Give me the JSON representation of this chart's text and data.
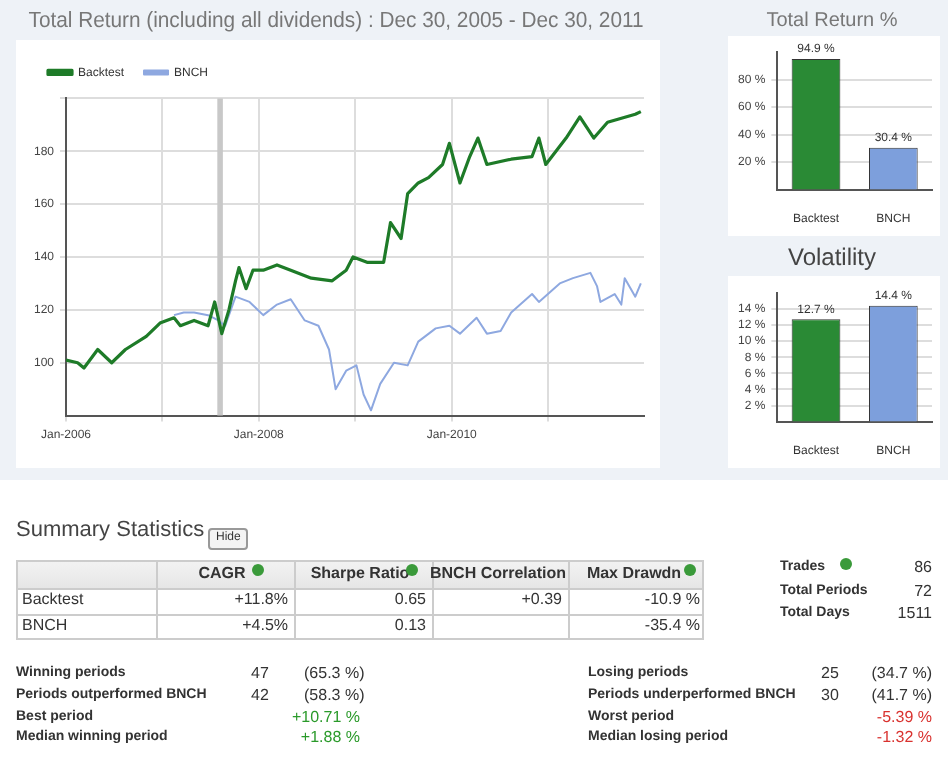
{
  "chart_data": [
    {
      "type": "line",
      "title": "Total Return (including all dividends) : Dec 30, 2005 - Dec 30, 2011",
      "legend": "top left",
      "grid": true,
      "xlim": [
        "2006-01-01",
        "2011-12-30"
      ],
      "xticks": [
        {
          "value": "2006-01",
          "label": "Jan-2006"
        },
        {
          "value": "2007-01",
          "label": null
        },
        {
          "value": "2008-01",
          "label": "Jan-2008"
        },
        {
          "value": "2009-01",
          "label": null
        },
        {
          "value": "2010-01",
          "label": "Jan-2010"
        },
        {
          "value": "2011-01",
          "label": null
        }
      ],
      "ylim": [
        80,
        200
      ],
      "yticks": [
        100,
        120,
        140,
        160,
        180,
        {
          "value": 200,
          "label": null
        }
      ],
      "bands": [
        {
          "axis": "x",
          "from": "2007-07-28",
          "to": "2007-08-18",
          "color": "#c8c8c8"
        }
      ],
      "series": [
        {
          "name": "Backtest",
          "color": "#1e7b28",
          "x": [
            "2006-01-01",
            "2006-02-14",
            "2006-03-10",
            "2006-05-01",
            "2006-06-23",
            "2006-08-14",
            "2006-11-01",
            "2006-12-23",
            "2007-02-14",
            "2007-03-10",
            "2007-05-01",
            "2007-06-23",
            "2007-07-18",
            "2007-08-14",
            "2007-09-10",
            "2007-10-05",
            "2007-10-18",
            "2007-11-14",
            "2007-12-10",
            "2008-01-18",
            "2008-03-10",
            "2008-05-01",
            "2008-07-18",
            "2008-10-05",
            "2008-11-27",
            "2008-12-23",
            "2009-02-14",
            "2009-04-18",
            "2009-05-14",
            "2009-06-23",
            "2009-07-18",
            "2009-08-27",
            "2009-10-05",
            "2009-11-27",
            "2009-12-23",
            "2010-02-01",
            "2010-03-10",
            "2010-04-10",
            "2010-05-14",
            "2010-08-14",
            "2010-11-01",
            "2010-11-27",
            "2010-12-23",
            "2011-03-10",
            "2011-05-01",
            "2011-06-23",
            "2011-08-14",
            "2011-11-27",
            "2011-12-18"
          ],
          "values": [
            101,
            100,
            98,
            105,
            100,
            105,
            110,
            115,
            117,
            114,
            116,
            114,
            123,
            111,
            120,
            131,
            136,
            128,
            135,
            135,
            137,
            135,
            132,
            131,
            135,
            140,
            138,
            138,
            153,
            147,
            164,
            168,
            170,
            175,
            183,
            168,
            178,
            185,
            175,
            177,
            178,
            185,
            175,
            185,
            193,
            185,
            191,
            194,
            195
          ]
        },
        {
          "name": "BNCH",
          "color": "#8ea8e0",
          "x": [
            "2007-02-14",
            "2007-03-23",
            "2007-05-01",
            "2007-06-23",
            "2007-08-01",
            "2007-08-27",
            "2007-10-05",
            "2007-11-27",
            "2008-01-18",
            "2008-03-10",
            "2008-05-01",
            "2008-06-23",
            "2008-08-14",
            "2008-09-23",
            "2008-10-18",
            "2008-11-27",
            "2009-01-05",
            "2009-02-01",
            "2009-03-01",
            "2009-04-05",
            "2009-05-27",
            "2009-07-18",
            "2009-08-27",
            "2009-11-01",
            "2009-12-23",
            "2010-02-01",
            "2010-04-05",
            "2010-05-14",
            "2010-07-05",
            "2010-08-14",
            "2010-11-01",
            "2010-11-27",
            "2011-02-14",
            "2011-04-05",
            "2011-06-10",
            "2011-07-05",
            "2011-07-18",
            "2011-09-10",
            "2011-10-05",
            "2011-10-18",
            "2011-11-27",
            "2011-12-18"
          ],
          "values": [
            118,
            119,
            119,
            118,
            116,
            114,
            125,
            123,
            118,
            122,
            124,
            116,
            114,
            105,
            90,
            97,
            99,
            88,
            82,
            92,
            100,
            99,
            108,
            113,
            114,
            111,
            117,
            111,
            112,
            119,
            126,
            123,
            130,
            132,
            134,
            129,
            123,
            126,
            122,
            132,
            125,
            130
          ]
        }
      ]
    },
    {
      "type": "bar",
      "title": "Total Return %",
      "grid": "y",
      "categories": [
        "Backtest",
        "BNCH"
      ],
      "values": [
        94.9,
        30.4
      ],
      "colors": [
        "#2a8a35",
        "#7d9fdc"
      ],
      "value_labels": [
        "94.9 %",
        "30.4 %"
      ],
      "ylim": [
        0,
        100
      ],
      "yticks": [
        {
          "value": 20,
          "label": "20 %"
        },
        {
          "value": 40,
          "label": "40 %"
        },
        {
          "value": 60,
          "label": "60 %"
        },
        {
          "value": 80,
          "label": "80 %"
        }
      ]
    },
    {
      "type": "bar",
      "title": "Volatility",
      "grid": "y",
      "categories": [
        "Backtest",
        "BNCH"
      ],
      "values": [
        12.7,
        14.4
      ],
      "colors": [
        "#2a8a35",
        "#7d9fdc"
      ],
      "value_labels": [
        "12.7 %",
        "14.4 %"
      ],
      "ylim": [
        0,
        16
      ],
      "yticks": [
        {
          "value": 2,
          "label": "2 %"
        },
        {
          "value": 4,
          "label": "4 %"
        },
        {
          "value": 6,
          "label": "6 %"
        },
        {
          "value": 8,
          "label": "8 %"
        },
        {
          "value": 10,
          "label": "10 %"
        },
        {
          "value": 12,
          "label": "12 %"
        },
        {
          "value": 14,
          "label": "14 %"
        }
      ]
    },
    {
      "type": "other",
      "title": "Summary Statistics",
      "annotations": [
        "Hide",
        "CAGR",
        "Sharpe Ratio",
        "BNCH Correlation",
        "Max Drawdn",
        "Backtest",
        "+11.8%",
        "0.65",
        "+0.39",
        "-10.9 %",
        "BNCH",
        "+4.5%",
        "0.13",
        "-35.4 %",
        "Trades",
        "86",
        "Total Periods",
        "72",
        "Total Days",
        "1511",
        "Winning periods",
        "47",
        "(65.3 %)",
        "Periods outperformed BNCH",
        "42",
        "(58.3 %)",
        "Best period",
        "+10.71 %",
        "Median winning period",
        "+1.88 %",
        "Losing periods",
        "25",
        "(34.7 %)",
        "Periods underperformed BNCH",
        "30",
        "(41.7 %)",
        "Worst period",
        "-5.39 %",
        "Median losing period",
        "-1.32 %"
      ]
    }
  ]
}
